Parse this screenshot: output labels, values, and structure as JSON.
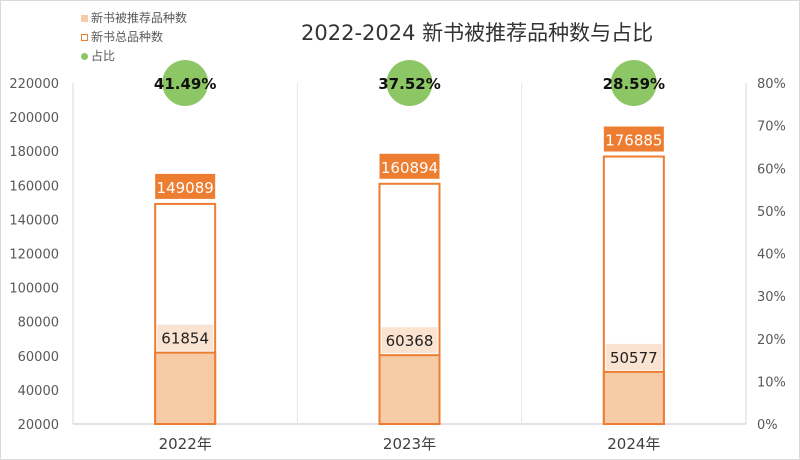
{
  "chart_data": {
    "type": "bar",
    "title": "2022-2024 新书被推荐品种数与占比",
    "categories": [
      "2022年",
      "2023年",
      "2024年"
    ],
    "series": [
      {
        "name": "新书被推荐品种数",
        "values": [
          61854,
          60368,
          50577
        ],
        "color": "#f8cba7"
      },
      {
        "name": "新书总品种数",
        "values": [
          149089,
          160894,
          176885
        ],
        "color": "#ed7d31"
      },
      {
        "name": "占比",
        "values": [
          41.49,
          37.52,
          28.59
        ],
        "labels": [
          "41.49%",
          "37.52%",
          "28.59%"
        ],
        "color": "#8cc665"
      }
    ],
    "ylim": [
      20000,
      220000
    ],
    "yticks": [
      "20000",
      "40000",
      "60000",
      "80000",
      "100000",
      "120000",
      "140000",
      "160000",
      "180000",
      "200000",
      "220000"
    ],
    "y2lim": [
      0,
      80
    ],
    "y2ticks": [
      "0%",
      "10%",
      "20%",
      "30%",
      "40%",
      "50%",
      "60%",
      "70%",
      "80%"
    ],
    "legend": "top-left"
  }
}
